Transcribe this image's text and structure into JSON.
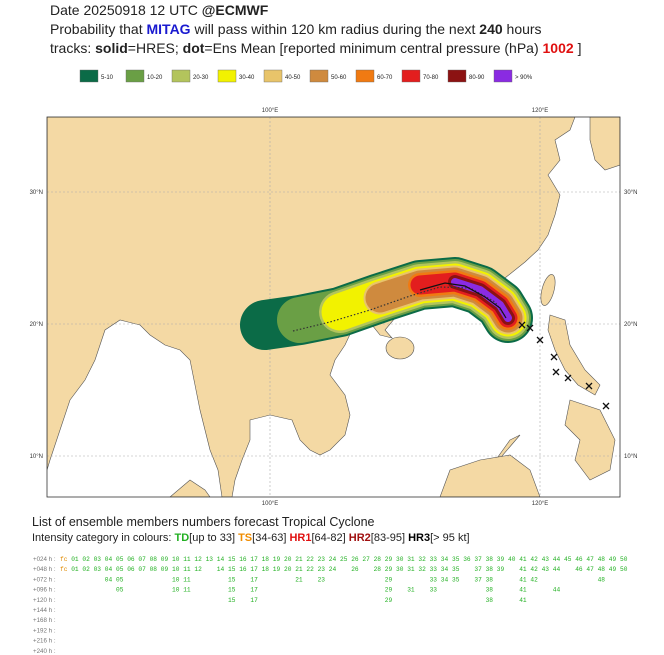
{
  "header": {
    "date": "Date 20250918 12 UTC",
    "source": "@ECMWF",
    "line2": {
      "pre": "Probability that",
      "name": "MITAG",
      "mid": "will pass within 120 km radius during the next",
      "hours": "240",
      "post": "hours"
    },
    "line3": {
      "tracks": "tracks:",
      "solid": "solid",
      "hres": "=HRES;",
      "dot": "dot",
      "ens": "=Ens Mean [reported minimum central pressure (hPa)",
      "pressure": "1002",
      "close": "]"
    }
  },
  "legend": [
    {
      "label": "5-10",
      "color": "#0b6b47"
    },
    {
      "label": "10-20",
      "color": "#6a9f45"
    },
    {
      "label": "20-30",
      "color": "#b3c45c"
    },
    {
      "label": "30-40",
      "color": "#f2f200"
    },
    {
      "label": "40-50",
      "color": "#e8c46a"
    },
    {
      "label": "50-60",
      "color": "#cf8a3e"
    },
    {
      "label": "60-70",
      "color": "#f07a12"
    },
    {
      "label": "70-80",
      "color": "#e31e1e"
    },
    {
      "label": "80-90",
      "color": "#8c1212"
    },
    {
      "label": "> 90%",
      "color": "#8a2be2"
    }
  ],
  "map": {
    "lon_labels": [
      "100°E",
      "120°E"
    ],
    "lat_labels": [
      "30°N",
      "20°N",
      "10°N"
    ]
  },
  "list": {
    "title": "List of ensemble members numbers forecast Tropical Cyclone",
    "intensity": {
      "label": "Intensity category in colours:",
      "categories": [
        {
          "name": "TD",
          "range": "[up to 33]",
          "color": "#22b022"
        },
        {
          "name": "TS",
          "range": "[34-63]",
          "color": "#f08c00"
        },
        {
          "name": "HR1",
          "range": "[64-82]",
          "color": "#e01010"
        },
        {
          "name": "HR2",
          "range": "[83-95]",
          "color": "#a01010"
        },
        {
          "name": "HR3",
          "range": "[> 95 kt]",
          "color": "#000000"
        }
      ]
    },
    "rows": [
      {
        "label": "+024 h :",
        "members": [
          "fc",
          "01",
          "02",
          "03",
          "04",
          "05",
          "06",
          "07",
          "08",
          "09",
          "10",
          "11",
          "12",
          "13",
          "14",
          "15",
          "16",
          "17",
          "18",
          "19",
          "20",
          "21",
          "22",
          "23",
          "24",
          "25",
          "26",
          "27",
          "28",
          "29",
          "30",
          "31",
          "32",
          "33",
          "34",
          "35",
          "36",
          "37",
          "38",
          "39",
          "40",
          "41",
          "42",
          "43",
          "44",
          "45",
          "46",
          "47",
          "48",
          "49",
          "50"
        ]
      },
      {
        "label": "+048 h :",
        "members": [
          "fc",
          "01",
          "02",
          "03",
          "04",
          "05",
          "06",
          "07",
          "08",
          "09",
          "10",
          "11",
          "12",
          "14",
          "15",
          "16",
          "17",
          "18",
          "19",
          "20",
          "21",
          "22",
          "23",
          "24",
          "26",
          "28",
          "29",
          "30",
          "31",
          "32",
          "33",
          "34",
          "35",
          "37",
          "38",
          "39",
          "41",
          "42",
          "43",
          "44",
          "46",
          "47",
          "48",
          "49",
          "50"
        ]
      },
      {
        "label": "+072 h :",
        "members": [
          "04",
          "05",
          "10",
          "11",
          "15",
          "17",
          "21",
          "23",
          "29",
          "33",
          "34",
          "35",
          "37",
          "38",
          "41",
          "42",
          "48"
        ]
      },
      {
        "label": "+096 h :",
        "members": [
          "05",
          "10",
          "11",
          "15",
          "17",
          "29",
          "31",
          "33",
          "38",
          "41",
          "44"
        ]
      },
      {
        "label": "+120 h :",
        "members": [
          "15",
          "17",
          "29",
          "38",
          "41"
        ]
      },
      {
        "label": "+144 h :"
      },
      {
        "label": "+168 h :"
      },
      {
        "label": "+192 h :"
      },
      {
        "label": "+216 h :"
      },
      {
        "label": "+240 h :"
      }
    ]
  }
}
